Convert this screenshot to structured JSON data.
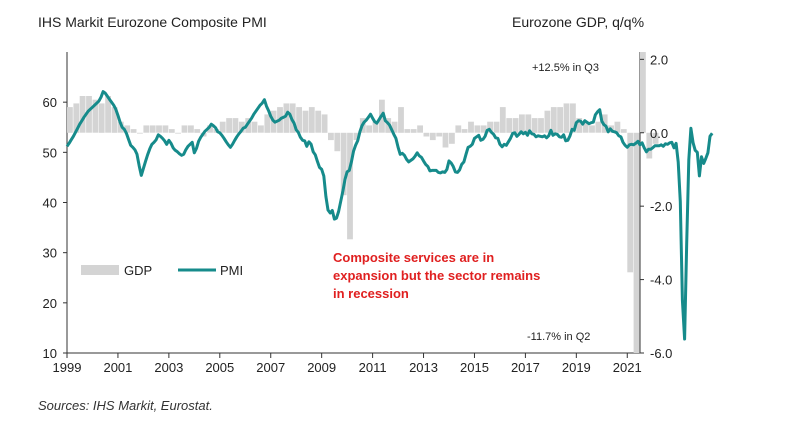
{
  "title": "IHS Markit Eurozone Composite PMI",
  "right_axis_title": "Eurozone GDP, q/q%",
  "source": "Sources: IHS Markit, Eurostat.",
  "annotation": "Composite services are in expansion but the sector remains in recession",
  "chart_data": {
    "type": "bar+line",
    "xlabel": "",
    "x_ticks": [
      "1999",
      "2001",
      "2003",
      "2005",
      "2007",
      "2009",
      "2011",
      "2013",
      "2015",
      "2017",
      "2019",
      "2021"
    ],
    "xlim": [
      1999.0,
      2021.5
    ],
    "left_axis": {
      "ticks": [
        "10",
        "20",
        "30",
        "40",
        "50",
        "60"
      ],
      "ylim": [
        10,
        70
      ]
    },
    "right_axis": {
      "ticks": [
        "-6.0",
        "-4.0",
        "-2.0",
        "0.0",
        "2.0"
      ],
      "ylim": [
        -6.0,
        2.2
      ]
    },
    "legend": [
      {
        "name": "GDP",
        "style": "bar",
        "color": "#d4d4d4"
      },
      {
        "name": "PMI",
        "style": "line",
        "color": "#168b8b"
      }
    ],
    "labels": {
      "max": "+12.5% in Q3",
      "min": "-11.7% in Q2"
    },
    "gdp_quarterly": {
      "start": 1999.0,
      "step": 0.25,
      "values": [
        0.7,
        0.8,
        1.0,
        1.0,
        0.9,
        0.8,
        1.0,
        0.7,
        0.3,
        0.2,
        0.1,
        0.0,
        0.2,
        0.2,
        0.2,
        0.2,
        0.1,
        0.0,
        0.2,
        0.2,
        0.1,
        -0.1,
        0.2,
        0.1,
        0.3,
        0.4,
        0.4,
        0.3,
        0.4,
        0.3,
        0.2,
        0.5,
        0.6,
        0.7,
        0.8,
        0.8,
        0.7,
        0.6,
        0.7,
        0.6,
        0.5,
        -0.2,
        -0.5,
        -1.7,
        -2.9,
        -0.2,
        0.4,
        0.2,
        0.3,
        0.9,
        0.4,
        0.3,
        0.7,
        0.1,
        0.1,
        0.2,
        -0.1,
        -0.2,
        -0.1,
        -0.4,
        -0.3,
        0.2,
        0.1,
        0.3,
        0.2,
        0.2,
        0.3,
        0.3,
        0.7,
        0.4,
        0.4,
        0.5,
        0.5,
        0.4,
        0.4,
        0.6,
        0.7,
        0.7,
        0.8,
        0.8,
        0.4,
        0.3,
        0.2,
        0.3,
        0.5,
        0.2,
        0.3,
        0.1,
        -3.8,
        -11.7,
        12.5,
        -0.7,
        -0.3
      ]
    },
    "pmi_monthly": {
      "start": 1999.0,
      "step": 0.0833333,
      "values": [
        51.2,
        51.8,
        52.5,
        53.2,
        54.0,
        54.8,
        55.6,
        56.3,
        57.0,
        57.6,
        58.2,
        58.6,
        59.0,
        59.4,
        59.8,
        60.2,
        61.0,
        62.1,
        61.8,
        61.2,
        60.6,
        60.0,
        59.4,
        58.6,
        57.4,
        56.0,
        55.0,
        54.6,
        53.8,
        52.6,
        51.4,
        51.0,
        50.5,
        49.6,
        47.3,
        45.4,
        46.8,
        48.2,
        49.5,
        50.7,
        51.6,
        52.0,
        52.5,
        53.5,
        53.2,
        52.8,
        52.3,
        51.6,
        52.4,
        51.8,
        50.9,
        50.4,
        50.1,
        49.7,
        49.4,
        49.6,
        50.5,
        51.2,
        51.6,
        52.0,
        49.9,
        50.8,
        52.2,
        53.0,
        53.6,
        54.2,
        54.6,
        55.0,
        55.6,
        55.3,
        54.9,
        54.1,
        53.9,
        53.4,
        52.8,
        52.1,
        51.5,
        51.0,
        51.6,
        52.4,
        53.1,
        53.7,
        54.2,
        54.8,
        55.0,
        55.6,
        56.2,
        56.8,
        57.6,
        58.2,
        58.8,
        59.4,
        59.8,
        60.5,
        59.2,
        58.3,
        57.2,
        56.4,
        56.0,
        56.2,
        56.4,
        56.8,
        57.0,
        57.2,
        58.0,
        57.6,
        56.5,
        55.8,
        54.5,
        54.0,
        53.0,
        52.4,
        52.3,
        51.2,
        52.1,
        51.6,
        50.1,
        49.5,
        48.2,
        47.0,
        46.6,
        45.3,
        41.2,
        38.5,
        37.9,
        38.4,
        36.7,
        36.9,
        38.2,
        40.3,
        42.3,
        44.6,
        46.1,
        46.4,
        48.1,
        50.2,
        51.4,
        52.3,
        54.1,
        55.3,
        56.0,
        56.4,
        57.0,
        57.6,
        56.8,
        56.1,
        55.8,
        56.5,
        57.2,
        57.8,
        56.3,
        55.9,
        55.4,
        54.5,
        53.6,
        52.8,
        51.0,
        49.6,
        49.8,
        49.4,
        48.6,
        48.1,
        48.4,
        48.7,
        49.2,
        49.9,
        49.3,
        49.0,
        48.3,
        47.6,
        47.2,
        46.3,
        46.4,
        46.4,
        46.4,
        46.0,
        45.9,
        46.1,
        46.0,
        46.6,
        48.3,
        47.9,
        47.2,
        46.1,
        46.0,
        46.5,
        47.6,
        48.1,
        49.6,
        51.0,
        51.2,
        51.6,
        52.8,
        53.1,
        53.4,
        52.4,
        52.6,
        53.2,
        54.4,
        54.6,
        54.0,
        53.6,
        52.9,
        52.8,
        51.6,
        51.1,
        51.6,
        51.4,
        52.1,
        52.8,
        53.8,
        53.9,
        53.2,
        53.6,
        54.1,
        53.7,
        54.0,
        53.4,
        54.3,
        53.7,
        53.6,
        53.1,
        53.3,
        53.2,
        53.1,
        53.3,
        52.9,
        53.3,
        54.4,
        53.4,
        53.7,
        53.6,
        53.1,
        53.0,
        53.5,
        52.3,
        52.4,
        53.3,
        54.6,
        54.4,
        55.9,
        56.3,
        56.2,
        55.6,
        56.3,
        56.0,
        55.7,
        55.9,
        56.0,
        57.5,
        58.1,
        58.5,
        56.2,
        55.5,
        55.2,
        54.1,
        54.7,
        54.2,
        54.1,
        53.9,
        53.3,
        53.1,
        52.0,
        51.4,
        51.0,
        51.5,
        51.6,
        51.5,
        51.8,
        52.2,
        51.5,
        51.9,
        50.9,
        50.1,
        50.6,
        50.6,
        50.9,
        51.3,
        51.3,
        51.3,
        51.5,
        51.2,
        51.7,
        51.6,
        51.9,
        52.0,
        50.9,
        51.8,
        48.1,
        40.2,
        20.5,
        12.8,
        31.9,
        48.5,
        54.8,
        51.9,
        50.4,
        50.0,
        45.3,
        49.1,
        47.8,
        48.8,
        49.9,
        53.2,
        53.8
      ]
    }
  }
}
